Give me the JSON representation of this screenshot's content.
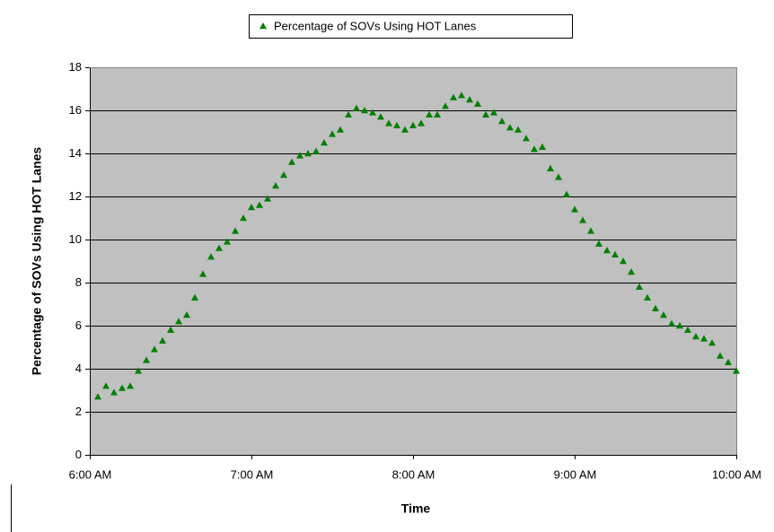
{
  "chart_data": {
    "type": "scatter",
    "x_label": "Time",
    "y_label": "Percentage of SOVs Using HOT Lanes",
    "legend": "top",
    "grid": true,
    "plot_background": "#c0c0c0",
    "xlim": [
      360,
      600
    ],
    "xticks": [
      {
        "value": 360,
        "label": "6:00 AM"
      },
      {
        "value": 420,
        "label": "7:00 AM"
      },
      {
        "value": 480,
        "label": "8:00 AM"
      },
      {
        "value": 540,
        "label": "9:00 AM"
      },
      {
        "value": 600,
        "label": "10:00 AM"
      }
    ],
    "ylim": [
      0,
      18
    ],
    "yticks": [
      0,
      2,
      4,
      6,
      8,
      10,
      12,
      14,
      16,
      18
    ],
    "series": [
      {
        "name": "Percentage of SOVs Using HOT Lanes",
        "color": "#008000",
        "x": [
          363,
          366,
          369,
          372,
          375,
          378,
          381,
          384,
          387,
          390,
          393,
          396,
          399,
          402,
          405,
          408,
          411,
          414,
          417,
          420,
          423,
          426,
          429,
          432,
          435,
          438,
          441,
          444,
          447,
          450,
          453,
          456,
          459,
          462,
          465,
          468,
          471,
          474,
          477,
          480,
          483,
          486,
          489,
          492,
          495,
          498,
          501,
          504,
          507,
          510,
          513,
          516,
          519,
          522,
          525,
          528,
          531,
          534,
          537,
          540,
          543,
          546,
          549,
          552,
          555,
          558,
          561,
          564,
          567,
          570,
          573,
          576,
          579,
          582,
          585,
          588,
          591,
          594,
          597,
          600
        ],
        "values": [
          2.7,
          3.2,
          2.9,
          3.1,
          3.2,
          3.9,
          4.4,
          4.9,
          5.3,
          5.8,
          6.2,
          6.5,
          7.3,
          8.4,
          9.2,
          9.6,
          9.9,
          10.4,
          11.0,
          11.5,
          11.6,
          11.9,
          12.5,
          13.0,
          13.6,
          13.9,
          14.0,
          14.1,
          14.5,
          14.9,
          15.1,
          15.8,
          16.1,
          16.0,
          15.9,
          15.7,
          15.4,
          15.3,
          15.1,
          15.3,
          15.4,
          15.8,
          15.8,
          16.2,
          16.6,
          16.7,
          16.5,
          16.3,
          15.8,
          15.9,
          15.5,
          15.2,
          15.1,
          14.7,
          14.2,
          14.3,
          13.3,
          12.9,
          12.1,
          11.4,
          10.9,
          10.4,
          9.8,
          9.5,
          9.3,
          9.0,
          8.5,
          7.8,
          7.3,
          6.8,
          6.5,
          6.1,
          6.0,
          5.8,
          5.5,
          5.4,
          5.2,
          4.6,
          4.3,
          3.9
        ]
      }
    ]
  }
}
